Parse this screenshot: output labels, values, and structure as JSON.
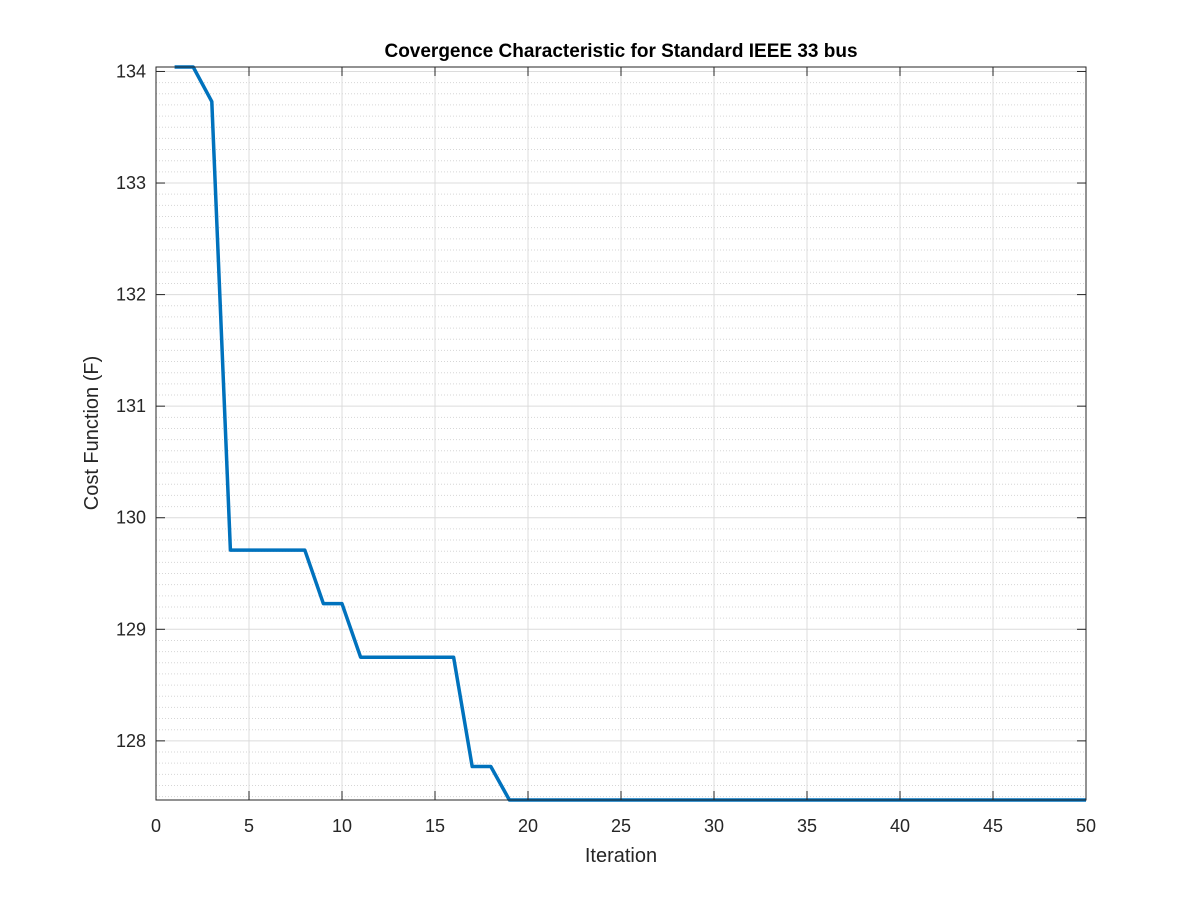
{
  "chart_data": {
    "type": "line",
    "title": "Covergence Characteristic for Standard IEEE  33 bus",
    "xlabel": "Iteration",
    "ylabel": "Cost Function (F)",
    "xlim": [
      0,
      50
    ],
    "ylim": [
      127.47,
      134.04
    ],
    "xticks": [
      0,
      5,
      10,
      15,
      20,
      25,
      30,
      35,
      40,
      45,
      50
    ],
    "yticks": [
      128,
      129,
      130,
      131,
      132,
      133,
      134
    ],
    "grid": true,
    "minor_grid": true,
    "box": true,
    "series": [
      {
        "color": "#0072BD",
        "x": [
          1,
          2,
          3,
          4,
          5,
          6,
          7,
          8,
          9,
          10,
          11,
          12,
          13,
          14,
          15,
          16,
          17,
          18,
          19,
          20,
          21,
          22,
          23,
          24,
          25,
          26,
          27,
          28,
          29,
          30,
          31,
          32,
          33,
          34,
          35,
          36,
          37,
          38,
          39,
          40,
          41,
          42,
          43,
          44,
          45,
          46,
          47,
          48,
          49,
          50
        ],
        "y": [
          134.04,
          134.04,
          133.73,
          129.71,
          129.71,
          129.71,
          129.71,
          129.71,
          129.23,
          129.23,
          128.75,
          128.75,
          128.75,
          128.75,
          128.75,
          128.75,
          127.77,
          127.77,
          127.47,
          127.47,
          127.47,
          127.47,
          127.47,
          127.47,
          127.47,
          127.47,
          127.47,
          127.47,
          127.47,
          127.47,
          127.47,
          127.47,
          127.47,
          127.47,
          127.47,
          127.47,
          127.47,
          127.47,
          127.47,
          127.47,
          127.47,
          127.47,
          127.47,
          127.47,
          127.47,
          127.47,
          127.47,
          127.47,
          127.47,
          127.47
        ]
      }
    ]
  }
}
